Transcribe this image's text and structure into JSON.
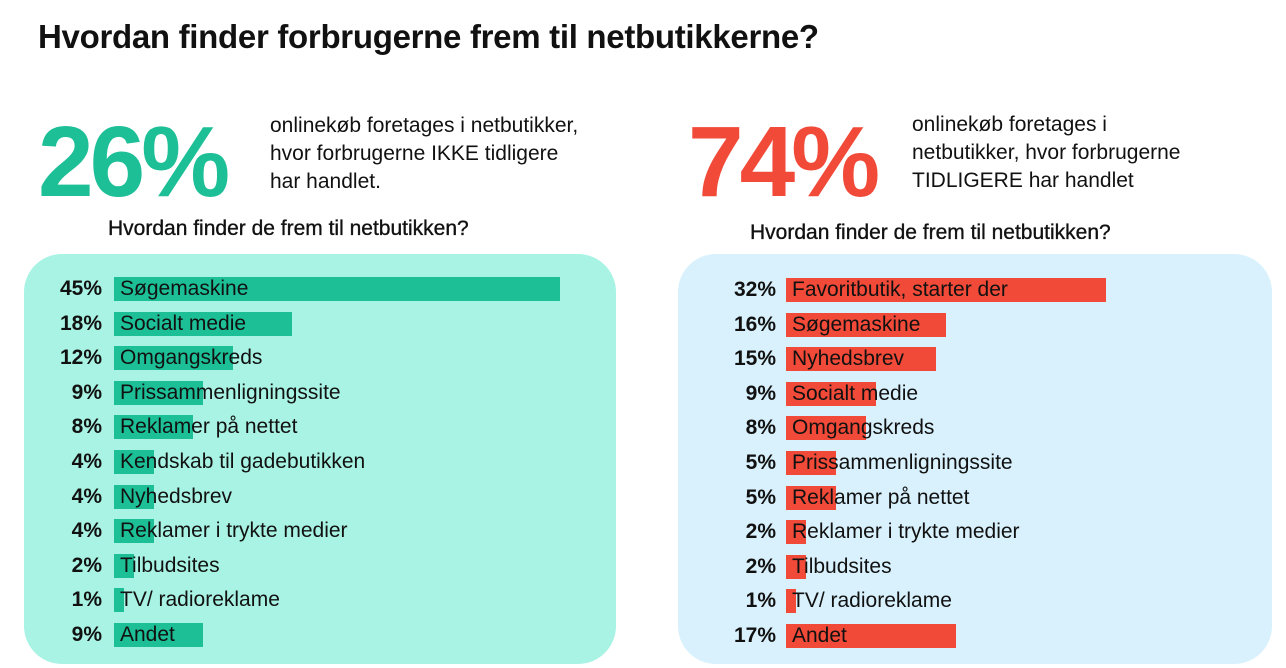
{
  "title": "Hvordan finder forbrugerne frem til netbutikkerne?",
  "colors": {
    "green": "#1dbf97",
    "red": "#f24a38",
    "green_panel": "#a8f3e3",
    "blue_panel": "#d8f1fc"
  },
  "left": {
    "big_value": "26%",
    "description": "onlinekøb foretages i netbutikker,\nhvor forbrugerne IKKE tidligere\nhar handlet.",
    "subheading": "Hvordan finder de frem til netbutikken?"
  },
  "right": {
    "big_value": "74%",
    "description": "onlinekøb foretages i\nnetbutikker, hvor forbrugerne\nTIDLIGERE har handlet",
    "subheading": "Hvordan finder de frem til netbutikken?"
  },
  "chart_data": [
    {
      "type": "bar",
      "orientation": "horizontal",
      "categories": [
        "Søgemaskine",
        "Socialt medie",
        "Omgangskreds",
        "Prissammenligningssite",
        "Reklamer på nettet",
        "Kendskab til gadebutikken",
        "Nyhedsbrev",
        "Reklamer i trykte medier",
        "Tilbudsites",
        "TV/ radioreklame",
        "Andet"
      ],
      "values": [
        45,
        18,
        12,
        9,
        8,
        4,
        4,
        4,
        2,
        1,
        9
      ],
      "value_labels": [
        "45%",
        "18%",
        "12%",
        "9%",
        "8%",
        "4%",
        "4%",
        "4%",
        "2%",
        "1%",
        "9%"
      ],
      "color": "#1dbf97"
    },
    {
      "type": "bar",
      "orientation": "horizontal",
      "categories": [
        "Favoritbutik, starter der",
        "Søgemaskine",
        "Nyhedsbrev",
        "Socialt medie",
        "Omgangskreds",
        "Prissammenligningssite",
        "Reklamer på nettet",
        "Reklamer i trykte medier",
        "Tilbudsites",
        "TV/ radioreklame",
        "Andet"
      ],
      "values": [
        32,
        16,
        15,
        9,
        8,
        5,
        5,
        2,
        2,
        1,
        17
      ],
      "value_labels": [
        "32%",
        "16%",
        "15%",
        "9%",
        "8%",
        "5%",
        "5%",
        "2%",
        "2%",
        "1%",
        "17%"
      ],
      "color": "#f24a38"
    }
  ]
}
